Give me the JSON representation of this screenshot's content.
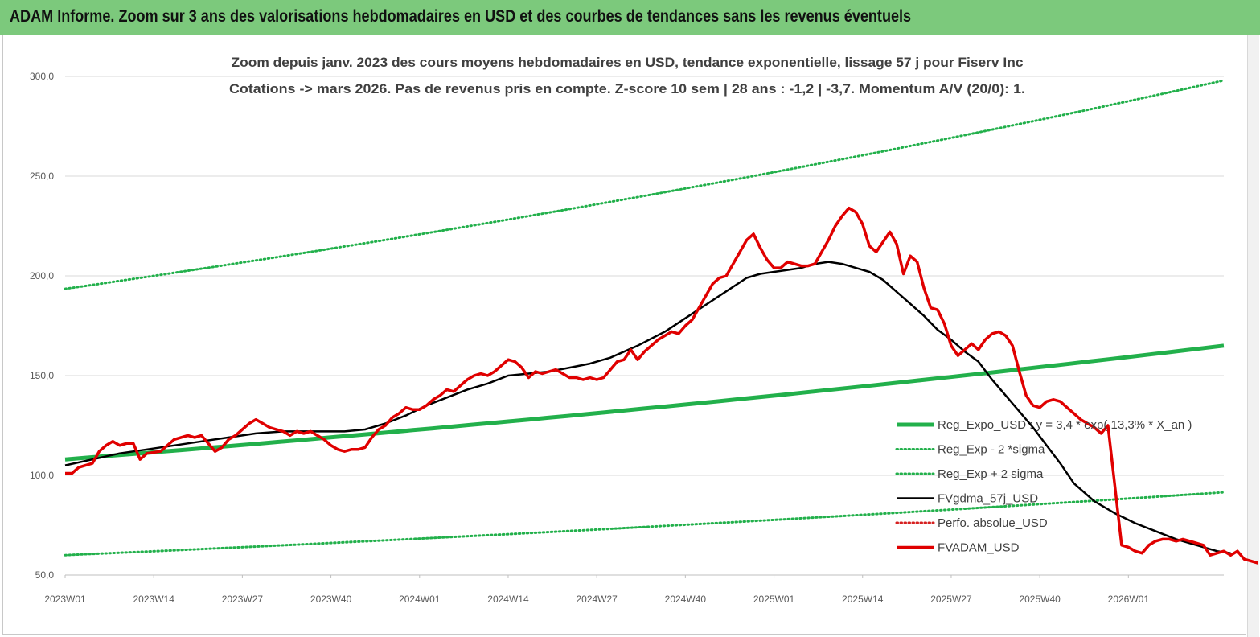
{
  "banner": {
    "title": "ADAM Informe. Zoom sur 3 ans des valorisations hebdomadaires en USD et des courbes de tendances sans les revenus éventuels"
  },
  "chart_data": {
    "type": "line",
    "title_line1": "Zoom depuis janv. 2023 des cours moyens hebdomadaires en USD, tendance exponentielle, lissage 57 j pour Fiserv Inc",
    "title_line2": "Cotations -> mars 2026. Pas de revenus pris en  compte. Z-score 10 sem  | 28 ans : -1,2 | -3,7. Momentum A/V (20/0): 1.",
    "ylim": [
      50,
      300
    ],
    "y_ticks": [
      "300,0",
      "250,0",
      "200,0",
      "150,0",
      "100,0",
      "50,0"
    ],
    "y_tick_values": [
      300,
      250,
      200,
      150,
      100,
      50
    ],
    "x_tick_labels": [
      "2023W01",
      "2023W14",
      "2023W27",
      "2023W40",
      "2024W01",
      "2024W14",
      "2024W27",
      "2024W40",
      "2025W01",
      "2025W14",
      "2025W27",
      "2025W40",
      "2026W01"
    ],
    "x_tick_weeks": [
      0,
      13,
      26,
      39,
      52,
      65,
      78,
      91,
      104,
      117,
      130,
      143,
      156
    ],
    "x_range_weeks": [
      0,
      170
    ],
    "legend_position": "right",
    "colors": {
      "reg": "#22b04b",
      "band": "#22b04b",
      "fvgdma": "#000000",
      "perfo": "#d62020",
      "fvadam": "#e00000",
      "grid": "#d9d9d9"
    },
    "series": [
      {
        "name": "Reg_Expo_USD : y = 3,4 * exp( 13,3% *  X_an )",
        "style": "thick-solid",
        "color_key": "reg",
        "exp_start": 108,
        "exp_end": 165
      },
      {
        "name": "Reg_Exp - 2 *sigma",
        "style": "dotted",
        "color_key": "band",
        "exp_start": 60,
        "exp_end": 91.5
      },
      {
        "name": "Reg_Exp + 2 sigma",
        "style": "dotted",
        "color_key": "band",
        "exp_start": 193.5,
        "exp_end": 298
      },
      {
        "name": "FVgdma_57j_USD",
        "style": "solid",
        "color_key": "fvgdma",
        "points": [
          [
            0,
            105
          ],
          [
            4,
            108
          ],
          [
            8,
            111
          ],
          [
            12,
            113
          ],
          [
            16,
            115
          ],
          [
            20,
            117
          ],
          [
            24,
            119
          ],
          [
            28,
            121
          ],
          [
            32,
            122
          ],
          [
            36,
            122
          ],
          [
            39,
            122
          ],
          [
            41,
            122
          ],
          [
            44,
            123
          ],
          [
            47,
            126
          ],
          [
            50,
            130
          ],
          [
            53,
            135
          ],
          [
            56,
            139
          ],
          [
            59,
            143
          ],
          [
            62,
            146
          ],
          [
            65,
            150
          ],
          [
            68,
            151
          ],
          [
            71,
            152
          ],
          [
            74,
            154
          ],
          [
            77,
            156
          ],
          [
            80,
            159
          ],
          [
            84,
            165
          ],
          [
            88,
            172
          ],
          [
            92,
            181
          ],
          [
            96,
            190
          ],
          [
            100,
            199
          ],
          [
            102,
            201
          ],
          [
            104,
            202
          ],
          [
            106,
            203
          ],
          [
            108,
            204
          ],
          [
            110,
            206
          ],
          [
            112,
            207
          ],
          [
            114,
            206
          ],
          [
            116,
            204
          ],
          [
            118,
            202
          ],
          [
            120,
            198
          ],
          [
            122,
            192
          ],
          [
            124,
            186
          ],
          [
            126,
            180
          ],
          [
            128,
            173
          ],
          [
            130,
            168
          ],
          [
            132,
            162
          ],
          [
            134,
            157
          ],
          [
            136,
            148
          ],
          [
            138,
            140
          ],
          [
            140,
            132
          ],
          [
            142,
            124
          ],
          [
            144,
            115
          ],
          [
            146,
            106
          ],
          [
            148,
            96
          ],
          [
            151,
            87
          ],
          [
            154,
            81
          ],
          [
            157,
            76
          ],
          [
            160,
            72
          ],
          [
            163,
            68
          ],
          [
            166,
            65
          ],
          [
            169,
            62
          ],
          [
            171,
            61
          ]
        ]
      },
      {
        "name": "Perfo. absolue_USD",
        "style": "dotted",
        "color_key": "perfo"
      },
      {
        "name": "FVADAM_USD",
        "style": "solid",
        "color_key": "fvadam",
        "points": [
          [
            0,
            101
          ],
          [
            1,
            101
          ],
          [
            2,
            104
          ],
          [
            4,
            106
          ],
          [
            5,
            112
          ],
          [
            6,
            115
          ],
          [
            7,
            117
          ],
          [
            8,
            115
          ],
          [
            9,
            116
          ],
          [
            10,
            116
          ],
          [
            11,
            108
          ],
          [
            12,
            111
          ],
          [
            14,
            112
          ],
          [
            15,
            115
          ],
          [
            16,
            118
          ],
          [
            17,
            119
          ],
          [
            18,
            120
          ],
          [
            19,
            119
          ],
          [
            20,
            120
          ],
          [
            21,
            116
          ],
          [
            22,
            112
          ],
          [
            23,
            114
          ],
          [
            24,
            118
          ],
          [
            25,
            120
          ],
          [
            26,
            123
          ],
          [
            27,
            126
          ],
          [
            28,
            128
          ],
          [
            29,
            126
          ],
          [
            30,
            124
          ],
          [
            31,
            123
          ],
          [
            32,
            122
          ],
          [
            33,
            120
          ],
          [
            34,
            122
          ],
          [
            35,
            121
          ],
          [
            36,
            122
          ],
          [
            37,
            120
          ],
          [
            38,
            118
          ],
          [
            39,
            115
          ],
          [
            40,
            113
          ],
          [
            41,
            112
          ],
          [
            42,
            113
          ],
          [
            43,
            113
          ],
          [
            44,
            114
          ],
          [
            45,
            119
          ],
          [
            46,
            123
          ],
          [
            47,
            125
          ],
          [
            48,
            129
          ],
          [
            49,
            131
          ],
          [
            50,
            134
          ],
          [
            51,
            133
          ],
          [
            52,
            133
          ],
          [
            53,
            135
          ],
          [
            54,
            138
          ],
          [
            55,
            140
          ],
          [
            56,
            143
          ],
          [
            57,
            142
          ],
          [
            58,
            145
          ],
          [
            59,
            148
          ],
          [
            60,
            150
          ],
          [
            61,
            151
          ],
          [
            62,
            150
          ],
          [
            63,
            152
          ],
          [
            64,
            155
          ],
          [
            65,
            158
          ],
          [
            66,
            157
          ],
          [
            67,
            154
          ],
          [
            68,
            149
          ],
          [
            69,
            152
          ],
          [
            70,
            151
          ],
          [
            71,
            152
          ],
          [
            72,
            153
          ],
          [
            73,
            151
          ],
          [
            74,
            149
          ],
          [
            75,
            149
          ],
          [
            76,
            148
          ],
          [
            77,
            149
          ],
          [
            78,
            148
          ],
          [
            79,
            149
          ],
          [
            80,
            153
          ],
          [
            81,
            157
          ],
          [
            82,
            158
          ],
          [
            83,
            163
          ],
          [
            84,
            158
          ],
          [
            85,
            162
          ],
          [
            86,
            165
          ],
          [
            87,
            168
          ],
          [
            88,
            170
          ],
          [
            89,
            172
          ],
          [
            90,
            171
          ],
          [
            91,
            175
          ],
          [
            92,
            178
          ],
          [
            93,
            184
          ],
          [
            94,
            190
          ],
          [
            95,
            196
          ],
          [
            96,
            199
          ],
          [
            97,
            200
          ],
          [
            98,
            206
          ],
          [
            99,
            212
          ],
          [
            100,
            218
          ],
          [
            101,
            221
          ],
          [
            102,
            214
          ],
          [
            103,
            208
          ],
          [
            104,
            204
          ],
          [
            105,
            204
          ],
          [
            106,
            207
          ],
          [
            107,
            206
          ],
          [
            108,
            205
          ],
          [
            109,
            205
          ],
          [
            110,
            206
          ],
          [
            111,
            212
          ],
          [
            112,
            218
          ],
          [
            113,
            225
          ],
          [
            114,
            230
          ],
          [
            115,
            234
          ],
          [
            116,
            232
          ],
          [
            117,
            226
          ],
          [
            118,
            215
          ],
          [
            119,
            212
          ],
          [
            120,
            217
          ],
          [
            121,
            222
          ],
          [
            122,
            216
          ],
          [
            123,
            201
          ],
          [
            124,
            210
          ],
          [
            125,
            207
          ],
          [
            126,
            194
          ],
          [
            127,
            184
          ],
          [
            128,
            183
          ],
          [
            129,
            176
          ],
          [
            130,
            165
          ],
          [
            131,
            160
          ],
          [
            132,
            163
          ],
          [
            133,
            166
          ],
          [
            134,
            163
          ],
          [
            135,
            168
          ],
          [
            136,
            171
          ],
          [
            137,
            172
          ],
          [
            138,
            170
          ],
          [
            139,
            165
          ],
          [
            140,
            152
          ],
          [
            141,
            140
          ],
          [
            142,
            135
          ],
          [
            143,
            134
          ],
          [
            144,
            137
          ],
          [
            145,
            138
          ],
          [
            146,
            137
          ],
          [
            147,
            134
          ],
          [
            148,
            131
          ],
          [
            149,
            128
          ],
          [
            150,
            126
          ],
          [
            151,
            124
          ],
          [
            152,
            121
          ],
          [
            153,
            125
          ],
          [
            154,
            95
          ],
          [
            155,
            65
          ],
          [
            156,
            64
          ],
          [
            157,
            62
          ],
          [
            158,
            61
          ],
          [
            159,
            65
          ],
          [
            160,
            67
          ],
          [
            161,
            68
          ],
          [
            162,
            68
          ],
          [
            163,
            67
          ],
          [
            164,
            68
          ],
          [
            165,
            67
          ],
          [
            166,
            66
          ],
          [
            167,
            65
          ],
          [
            168,
            60
          ],
          [
            169,
            61
          ],
          [
            170,
            62
          ],
          [
            171,
            60
          ],
          [
            172,
            62
          ],
          [
            173,
            58
          ],
          [
            174,
            57
          ],
          [
            175,
            56
          ]
        ]
      }
    ]
  }
}
